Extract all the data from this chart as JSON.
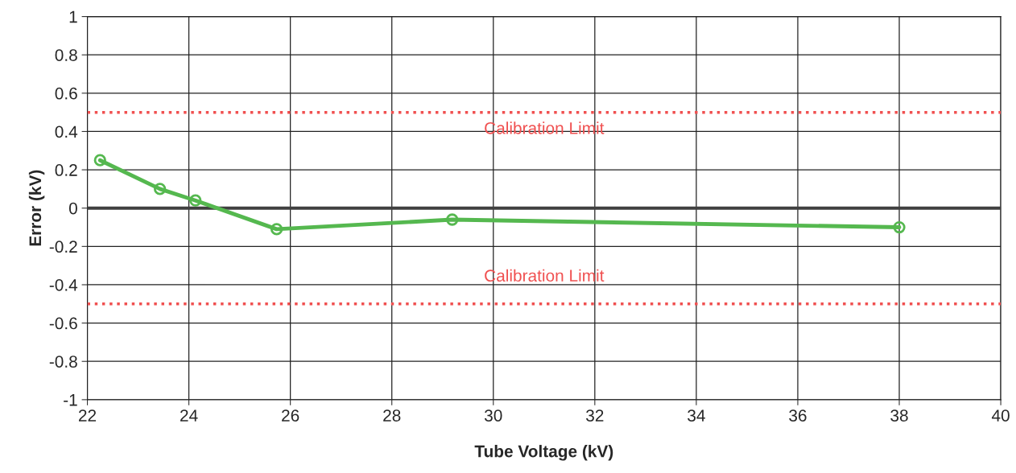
{
  "chart_data": {
    "type": "line",
    "xlabel": "Tube Voltage (kV)",
    "ylabel": "Error (kV)",
    "x": [
      22.25,
      23.43,
      24.13,
      25.73,
      29.19,
      38.0
    ],
    "series": [
      {
        "color": "#55b84f",
        "values": [
          0.25,
          0.1,
          0.04,
          -0.11,
          -0.06,
          -0.1
        ]
      }
    ],
    "xlim": [
      22,
      40
    ],
    "xticks": [
      22,
      24,
      26,
      28,
      30,
      32,
      34,
      36,
      38,
      40
    ],
    "ylim": [
      -1,
      1
    ],
    "yticks": [
      -1,
      -0.8,
      -0.6,
      -0.4,
      -0.2,
      0,
      0.2,
      0.4,
      0.6,
      0.8,
      1
    ],
    "ref_lines": [
      {
        "axis": "y",
        "value": 0.5,
        "label": "Calibration Limit",
        "color": "#f05050",
        "line_style": "dotted"
      },
      {
        "axis": "y",
        "value": -0.5,
        "label": "Calibration Limit",
        "color": "#f05050",
        "line_style": "dotted"
      },
      {
        "axis": "y",
        "value": 0,
        "label": null,
        "color": "#404040",
        "line_style": "solid"
      }
    ],
    "grid": true,
    "marker": "circle",
    "line_style": "solid",
    "legend": false
  }
}
